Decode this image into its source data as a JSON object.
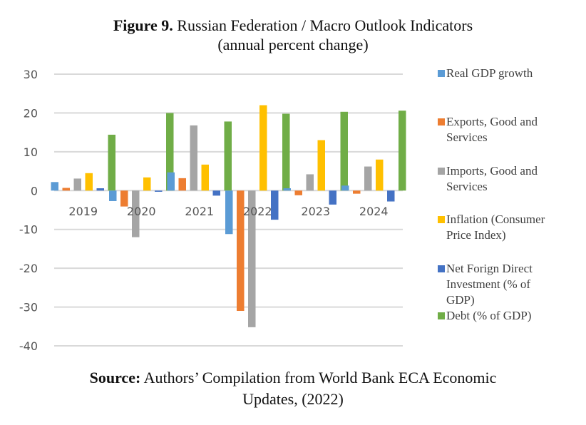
{
  "figure": {
    "label": "Figure 9.",
    "title": " Russian Federation / Macro Outlook Indicators",
    "subtitle": "(annual percent change)"
  },
  "source": {
    "label": "Source:",
    "text": " Authors’ Compilation from World Bank ECA Economic",
    "text2": "Updates, (2022)"
  },
  "chart_data": {
    "type": "bar",
    "title": "Russian Federation / Macro Outlook Indicators (annual percent change)",
    "xlabel": "",
    "ylabel": "",
    "categories": [
      "2019",
      "2020",
      "2021",
      "2022",
      "2023",
      "2024"
    ],
    "ylim": [
      -40,
      30
    ],
    "yticks": [
      30,
      20,
      10,
      0,
      -10,
      -20,
      -30,
      -40
    ],
    "grid": true,
    "legend_position": "right",
    "series": [
      {
        "name": "Real GDP growth",
        "color": "#5B9BD5",
        "values": [
          2.2,
          -2.7,
          4.7,
          -11.2,
          0.6,
          1.3
        ]
      },
      {
        "name": "Exports, Good and Services",
        "color": "#ED7D31",
        "values": [
          0.7,
          -4.1,
          3.2,
          -31.0,
          -1.2,
          -0.8
        ]
      },
      {
        "name": "Imports, Good and Services",
        "color": "#A5A5A5",
        "values": [
          3.1,
          -12.0,
          16.8,
          -35.2,
          4.2,
          6.2
        ]
      },
      {
        "name": "Inflation (Consumer Price Index)",
        "color": "#FFC000",
        "values": [
          4.5,
          3.4,
          6.7,
          22.0,
          13.0,
          8.0
        ]
      },
      {
        "name": "Net Forign Direct Investment (% of GDP)",
        "color": "#4472C4",
        "values": [
          0.6,
          -0.3,
          -1.3,
          -7.5,
          -3.6,
          -2.8
        ]
      },
      {
        "name": "Debt (% of GDP)",
        "color": "#70AD47",
        "values": [
          14.4,
          20.0,
          17.8,
          19.8,
          20.3,
          20.6
        ]
      }
    ],
    "legend": [
      {
        "label": "Real GDP growth",
        "lines": [
          "Real GDP growth"
        ]
      },
      {
        "label": "Exports, Good and Services",
        "lines": [
          "Exports, Good and",
          "Services"
        ]
      },
      {
        "label": "Imports, Good and Services",
        "lines": [
          "Imports, Good and",
          "Services"
        ]
      },
      {
        "label": "Inflation (Consumer Price Index)",
        "lines": [
          "Inflation (Consumer",
          "Price Index)"
        ]
      },
      {
        "label": "Net Forign Direct Investment (% of GDP)",
        "lines": [
          "Net Forign Direct",
          "Investment (% of",
          "GDP)"
        ]
      },
      {
        "label": "Debt (% of GDP)",
        "lines": [
          "Debt (% of GDP)"
        ]
      }
    ]
  }
}
